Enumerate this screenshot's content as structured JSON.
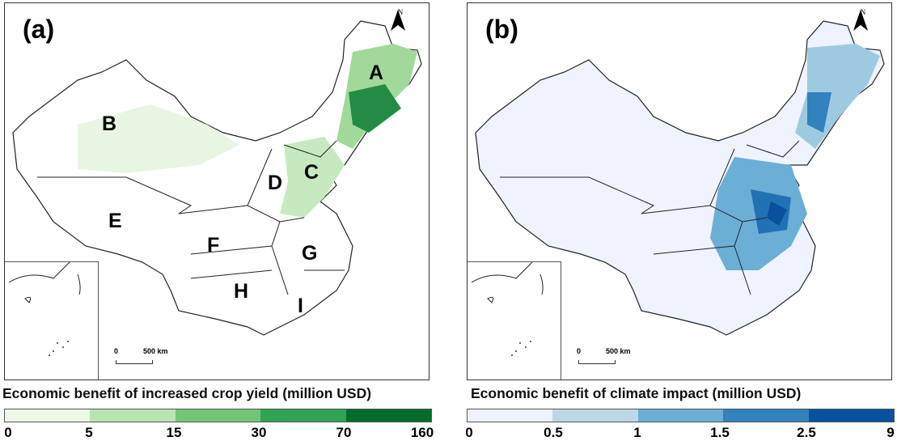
{
  "panels": [
    {
      "label": "(a)",
      "regions": [
        "A",
        "B",
        "C",
        "D",
        "E",
        "F",
        "G",
        "H",
        "I"
      ],
      "north": "N",
      "scale": {
        "start": "0",
        "end": "500 km"
      },
      "fill_color": "#e8f5e3",
      "accent": "#2e9e4f",
      "legend": {
        "title": "Economic benefit of increased crop yield (million USD)",
        "ticks": [
          "0",
          "5",
          "15",
          "30",
          "70",
          "160"
        ],
        "colors": [
          "#edf8e9",
          "#bae4b3",
          "#74c476",
          "#31a354",
          "#006d2c"
        ]
      }
    },
    {
      "label": "(b)",
      "north": "N",
      "scale": {
        "start": "0",
        "end": "500 km"
      },
      "fill_color": "#eff3ff",
      "accent": "#3182bd",
      "legend": {
        "title": "Economic benefit of climate impact (million USD)",
        "ticks": [
          "0",
          "0.5",
          "1",
          "1.5",
          "2.5",
          "9"
        ],
        "colors": [
          "#eff3ff",
          "#bdd7e7",
          "#6baed6",
          "#3182bd",
          "#08519c"
        ]
      }
    }
  ]
}
